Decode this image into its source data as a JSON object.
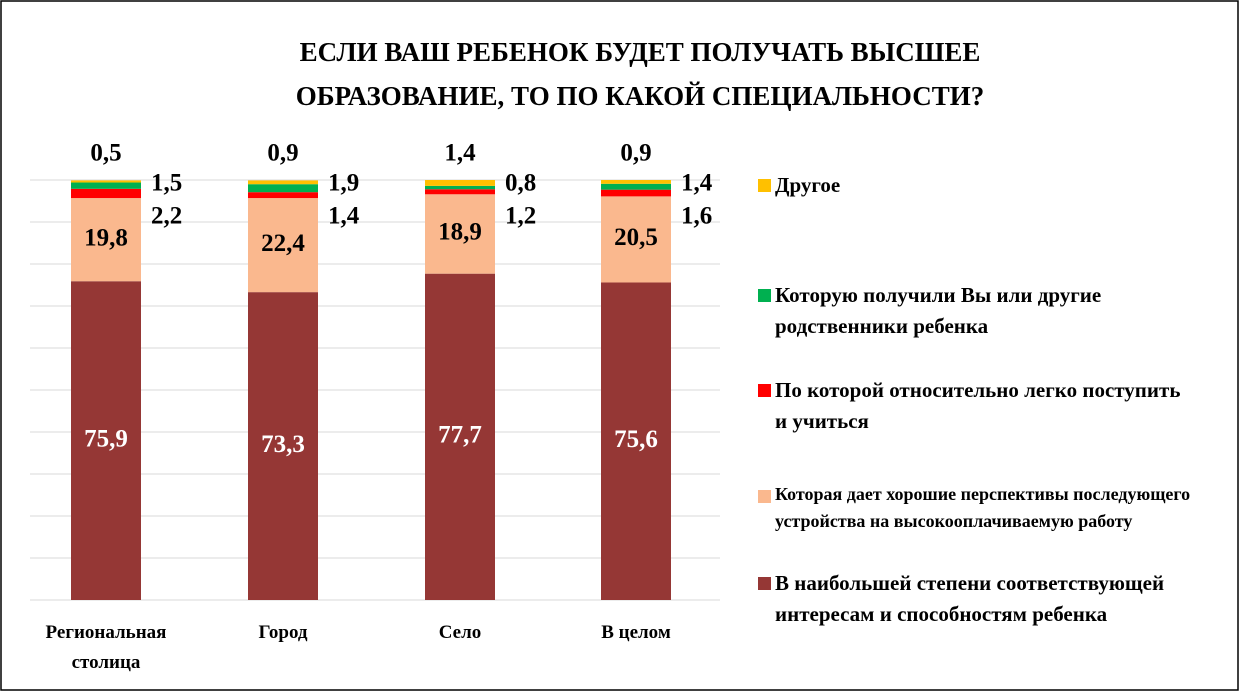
{
  "chart_data": {
    "type": "stacked_bar",
    "title": "ЕСЛИ ВАШ РЕБЕНОК БУДЕТ ПОЛУЧАТЬ ВЫСШЕЕ ОБРАЗОВАНИЕ, ТО ПО КАКОЙ СПЕЦИАЛЬНОСТИ?",
    "categories": [
      "Региональная столица",
      "Город",
      "Село",
      "В целом"
    ],
    "series": [
      {
        "name": "В наибольшей степени соответствующей интересам и способностям ребенка",
        "color": "#953735",
        "values": [
          75.9,
          73.3,
          77.7,
          75.6
        ],
        "value_labels": [
          "75,9",
          "73,3",
          "77,7",
          "75,6"
        ]
      },
      {
        "name": "Которая дает хорошие перспективы последующего устройства на высокооплачиваемую работу",
        "color": "#fab88e",
        "values": [
          19.8,
          22.4,
          18.9,
          20.5
        ],
        "value_labels": [
          "19,8",
          "22,4",
          "18,9",
          "20,5"
        ]
      },
      {
        "name": "По которой относительно легко поступить и учиться",
        "color": "#ff0000",
        "values": [
          2.2,
          1.4,
          1.2,
          1.6
        ],
        "value_labels": [
          "2,2",
          "1,4",
          "1,2",
          "1,6"
        ]
      },
      {
        "name": "Которую получили Вы или другие родственники ребенка",
        "color": "#00b050",
        "values": [
          1.5,
          1.9,
          0.8,
          1.4
        ],
        "value_labels": [
          "1,5",
          "1,9",
          "0,8",
          "1,4"
        ]
      },
      {
        "name": "Другое",
        "color": "#ffc000",
        "values": [
          0.5,
          0.9,
          1.4,
          0.9
        ],
        "value_labels": [
          "0,5",
          "0,9",
          "1,4",
          "0,9"
        ]
      }
    ],
    "ylim": [
      0,
      100
    ],
    "yticks": [
      0,
      10,
      20,
      30,
      40,
      50,
      60,
      70,
      80,
      90,
      100
    ],
    "grid": true,
    "legend": "right"
  }
}
